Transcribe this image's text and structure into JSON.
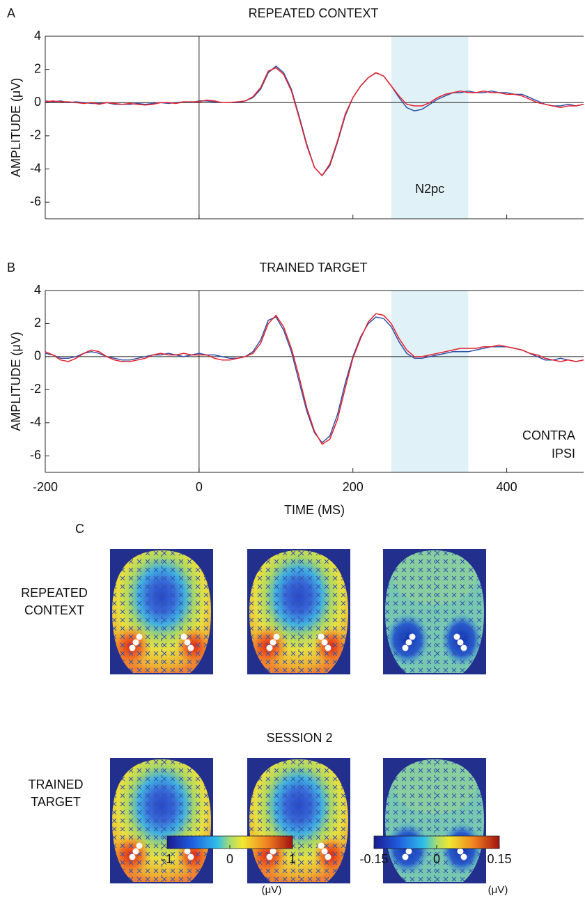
{
  "chart_data": [
    {
      "type": "line",
      "panel": "A",
      "title": "REPEATED CONTEXT",
      "ylabel": "AMPLITUDE (μV)",
      "x": [
        -200,
        -190,
        -180,
        -170,
        -160,
        -150,
        -140,
        -130,
        -120,
        -110,
        -100,
        -90,
        -80,
        -70,
        -60,
        -50,
        -40,
        -30,
        -20,
        -10,
        0,
        10,
        20,
        30,
        40,
        50,
        60,
        70,
        80,
        90,
        100,
        110,
        120,
        130,
        140,
        150,
        160,
        170,
        180,
        190,
        200,
        210,
        220,
        230,
        240,
        250,
        260,
        270,
        280,
        290,
        300,
        310,
        320,
        330,
        340,
        350,
        360,
        370,
        380,
        390,
        400,
        410,
        420,
        430,
        440,
        450,
        460,
        470,
        480,
        490,
        500
      ],
      "xlim": [
        -200,
        500
      ],
      "ylim": [
        -7,
        4
      ],
      "yticks": [
        -6,
        -4,
        -2,
        0,
        2,
        4
      ],
      "xticks": [
        -200,
        0,
        200,
        400
      ],
      "xtick_labels": false,
      "shade": {
        "x": [
          250,
          350
        ],
        "label": "N2pc",
        "color": "#e0f1f7"
      },
      "series": [
        {
          "name": "CONTRA",
          "color": "#3050a8",
          "values": [
            0.1,
            0.05,
            0.1,
            0,
            0.05,
            0,
            -0.05,
            -0.05,
            0,
            -0.1,
            -0.1,
            -0.1,
            -0.05,
            -0.1,
            -0.05,
            0,
            -0.05,
            0,
            0.05,
            0,
            0.1,
            0.1,
            0.05,
            0,
            0,
            0,
            0.1,
            0.3,
            0.8,
            1.8,
            2.2,
            1.8,
            0.8,
            -0.8,
            -2.5,
            -3.9,
            -4.4,
            -3.8,
            -2.4,
            -0.8,
            0.3,
            1.0,
            1.5,
            1.8,
            1.6,
            1.0,
            0.3,
            -0.3,
            -0.5,
            -0.4,
            -0.1,
            0.2,
            0.4,
            0.6,
            0.6,
            0.7,
            0.6,
            0.6,
            0.7,
            0.6,
            0.6,
            0.5,
            0.5,
            0.3,
            0.1,
            -0.1,
            -0.2,
            -0.2,
            -0.1,
            -0.2,
            -0.1
          ]
        },
        {
          "name": "IPSI",
          "color": "#e8202a",
          "values": [
            0.05,
            0.1,
            0.05,
            0.05,
            0,
            -0.05,
            0,
            -0.1,
            0,
            -0.05,
            -0.1,
            -0.05,
            -0.1,
            -0.15,
            -0.1,
            0,
            0,
            -0.05,
            0.05,
            0.05,
            0.05,
            0.15,
            0.1,
            0,
            0,
            0.05,
            0.1,
            0.35,
            0.9,
            1.9,
            2.1,
            1.7,
            0.7,
            -0.9,
            -2.6,
            -3.9,
            -4.4,
            -3.7,
            -2.3,
            -0.7,
            0.3,
            1.0,
            1.5,
            1.8,
            1.6,
            1.0,
            0.4,
            -0.1,
            -0.2,
            -0.2,
            0,
            0.3,
            0.5,
            0.6,
            0.7,
            0.6,
            0.6,
            0.7,
            0.6,
            0.6,
            0.5,
            0.5,
            0.4,
            0.2,
            0,
            -0.1,
            -0.2,
            -0.3,
            -0.2,
            -0.2,
            -0.1
          ]
        }
      ]
    },
    {
      "type": "line",
      "panel": "B",
      "title": "TRAINED TARGET",
      "ylabel": "AMPLITUDE (μV)",
      "xlabel": "TIME (MS)",
      "x": [
        -200,
        -190,
        -180,
        -170,
        -160,
        -150,
        -140,
        -130,
        -120,
        -110,
        -100,
        -90,
        -80,
        -70,
        -60,
        -50,
        -40,
        -30,
        -20,
        -10,
        0,
        10,
        20,
        30,
        40,
        50,
        60,
        70,
        80,
        90,
        100,
        110,
        120,
        130,
        140,
        150,
        160,
        170,
        180,
        190,
        200,
        210,
        220,
        230,
        240,
        250,
        260,
        270,
        280,
        290,
        300,
        310,
        320,
        330,
        340,
        350,
        360,
        370,
        380,
        390,
        400,
        410,
        420,
        430,
        440,
        450,
        460,
        470,
        480,
        490,
        500
      ],
      "xlim": [
        -200,
        500
      ],
      "ylim": [
        -7,
        4
      ],
      "yticks": [
        -6,
        -4,
        -2,
        0,
        2,
        4
      ],
      "xticks": [
        -200,
        0,
        200,
        400
      ],
      "xtick_labels": true,
      "shade": {
        "x": [
          250,
          350
        ],
        "color": "#e0f1f7"
      },
      "legend": "lower right",
      "series": [
        {
          "name": "CONTRA",
          "color": "#3050a8",
          "values": [
            0.2,
            0.1,
            -0.1,
            -0.1,
            0,
            0.2,
            0.3,
            0.2,
            0,
            -0.1,
            -0.2,
            -0.2,
            -0.1,
            0,
            0.1,
            0.1,
            0.2,
            0.1,
            0,
            0.1,
            0.2,
            0.1,
            0.1,
            0,
            -0.1,
            -0.1,
            0,
            0.3,
            1.0,
            2.2,
            2.4,
            1.6,
            0.3,
            -1.5,
            -3.3,
            -4.6,
            -5.2,
            -4.8,
            -3.5,
            -1.6,
            0,
            1.2,
            2.0,
            2.4,
            2.3,
            1.8,
            0.9,
            0.2,
            -0.1,
            -0.1,
            0,
            0.1,
            0.2,
            0.3,
            0.3,
            0.3,
            0.4,
            0.5,
            0.6,
            0.6,
            0.6,
            0.5,
            0.4,
            0.2,
            0,
            -0.2,
            -0.2,
            -0.1,
            -0.2,
            -0.3,
            -0.2
          ]
        },
        {
          "name": "IPSI",
          "color": "#e8202a",
          "values": [
            0.3,
            0.1,
            -0.2,
            -0.3,
            -0.1,
            0.2,
            0.4,
            0.3,
            0,
            -0.2,
            -0.3,
            -0.3,
            -0.2,
            -0.1,
            0.1,
            0.2,
            0.1,
            0.1,
            0.2,
            0.1,
            0.1,
            0.1,
            -0.1,
            -0.2,
            -0.2,
            -0.1,
            0,
            0.2,
            0.8,
            2.0,
            2.5,
            1.8,
            0.5,
            -1.2,
            -3.1,
            -4.5,
            -5.3,
            -5.0,
            -3.8,
            -1.9,
            -0.1,
            1.1,
            2.1,
            2.6,
            2.5,
            2.0,
            1.1,
            0.4,
            0,
            0,
            0.1,
            0.2,
            0.3,
            0.4,
            0.5,
            0.5,
            0.5,
            0.6,
            0.6,
            0.7,
            0.6,
            0.5,
            0.4,
            0.2,
            0.1,
            -0.1,
            -0.2,
            -0.3,
            -0.2,
            -0.3,
            -0.2
          ]
        }
      ]
    }
  ],
  "panel_c": {
    "label": "C",
    "row_labels": [
      [
        "REPEATED",
        "CONTEXT"
      ],
      [
        "TRAINED",
        "TARGET"
      ]
    ],
    "session_label": "SESSION 2",
    "colorbars": [
      {
        "lim": [
          -1,
          1
        ],
        "ticks": [
          -1,
          0,
          1
        ],
        "unit": "(μV)"
      },
      {
        "lim": [
          -0.15,
          0.15
        ],
        "ticks": [
          -0.15,
          0,
          0.15
        ],
        "unit": "(μV)"
      }
    ]
  }
}
